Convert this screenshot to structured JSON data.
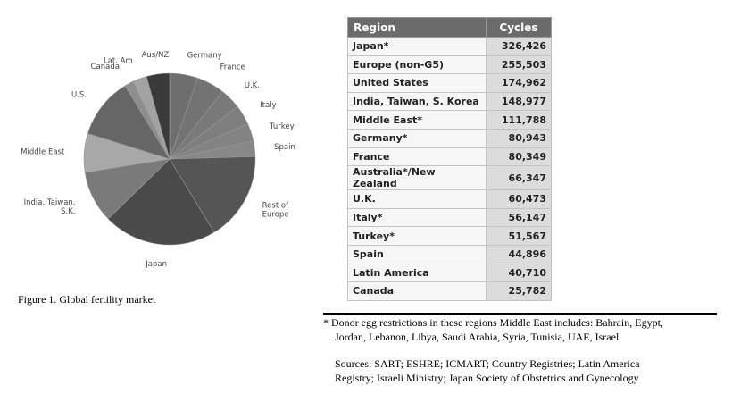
{
  "chart_data": [
    {
      "type": "pie",
      "title": "",
      "slices": [
        {
          "label": "Germany",
          "value": 80943,
          "color": "#6e6e6e"
        },
        {
          "label": "France",
          "value": 80349,
          "color": "#737373"
        },
        {
          "label": "U.K.",
          "value": 60473,
          "color": "#797979"
        },
        {
          "label": "Italy",
          "value": 56147,
          "color": "#7e7e7e"
        },
        {
          "label": "Turkey",
          "value": 51567,
          "color": "#838383"
        },
        {
          "label": "Spain",
          "value": 44896,
          "color": "#888888"
        },
        {
          "label": "Rest of\nEurope",
          "value": 255503,
          "color": "#555555"
        },
        {
          "label": "Japan",
          "value": 326426,
          "color": "#4a4a4a"
        },
        {
          "label": "India, Taiwan,\nS.K.",
          "value": 148977,
          "color": "#7a7a7a"
        },
        {
          "label": "Middle East",
          "value": 111788,
          "color": "#a8a8a8"
        },
        {
          "label": "U.S.",
          "value": 174962,
          "color": "#666666"
        },
        {
          "label": "Canada",
          "value": 25782,
          "color": "#8e8e8e"
        },
        {
          "label": "Lat. Am",
          "value": 40710,
          "color": "#a2a2a2"
        },
        {
          "label": "Aus/NZ",
          "value": 66347,
          "color": "#3a3a3a"
        }
      ]
    },
    {
      "type": "table",
      "columns": [
        "Region",
        "Cycles"
      ],
      "rows": [
        {
          "region": "Japan*",
          "cycles": "326,426"
        },
        {
          "region": "Europe (non-G5)",
          "cycles": "255,503"
        },
        {
          "region": "United States",
          "cycles": "174,962"
        },
        {
          "region": "India, Taiwan, S. Korea",
          "cycles": "148,977"
        },
        {
          "region": "Middle East*",
          "cycles": "111,788"
        },
        {
          "region": "Germany*",
          "cycles": "80,943"
        },
        {
          "region": "France",
          "cycles": "80,349"
        },
        {
          "region": "Australia*/New Zealand",
          "cycles": "66,347"
        },
        {
          "region": "U.K.",
          "cycles": "60,473"
        },
        {
          "region": "Italy*",
          "cycles": "56,147"
        },
        {
          "region": "Turkey*",
          "cycles": "51,567"
        },
        {
          "region": "Spain",
          "cycles": "44,896"
        },
        {
          "region": "Latin America",
          "cycles": "40,710"
        },
        {
          "region": "Canada",
          "cycles": "25,782"
        }
      ]
    }
  ],
  "caption": "Figure 1. Global fertility market",
  "footnote": {
    "line1": "*  Donor egg restrictions in these regions Middle East includes: Bahrain, Egypt,",
    "line2": "Jordan, Lebanon, Libya, Saudi Arabia, Syria, Tunisia, UAE, Israel",
    "line3": "Sources: SART; ESHRE; ICMART; Country Registries; Latin America",
    "line4": "Registry; Israeli Ministry; Japan Society of Obstetrics and Gynecology"
  }
}
